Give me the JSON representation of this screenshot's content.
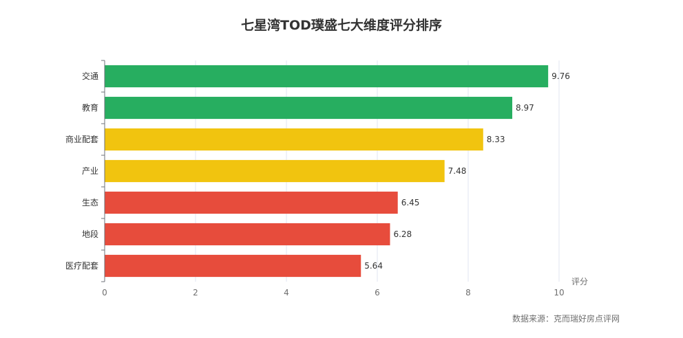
{
  "chart_data": {
    "type": "bar",
    "orientation": "horizontal",
    "title": "七星湾TOD璞盛七大维度评分排序",
    "categories": [
      "交通",
      "教育",
      "商业配套",
      "产业",
      "生态",
      "地段",
      "医疗配套"
    ],
    "values": [
      9.76,
      8.97,
      8.33,
      7.48,
      6.45,
      6.28,
      5.64
    ],
    "bar_colors": [
      "#27ae60",
      "#27ae60",
      "#f1c40f",
      "#f1c40f",
      "#e74c3c",
      "#e74c3c",
      "#e74c3c"
    ],
    "xlabel": "评分",
    "xlim": [
      0,
      10
    ],
    "xticks": [
      0,
      2,
      4,
      6,
      8,
      10
    ],
    "grid": "vertical"
  },
  "footer": {
    "source": "数据来源：克而瑞好房点评网"
  }
}
